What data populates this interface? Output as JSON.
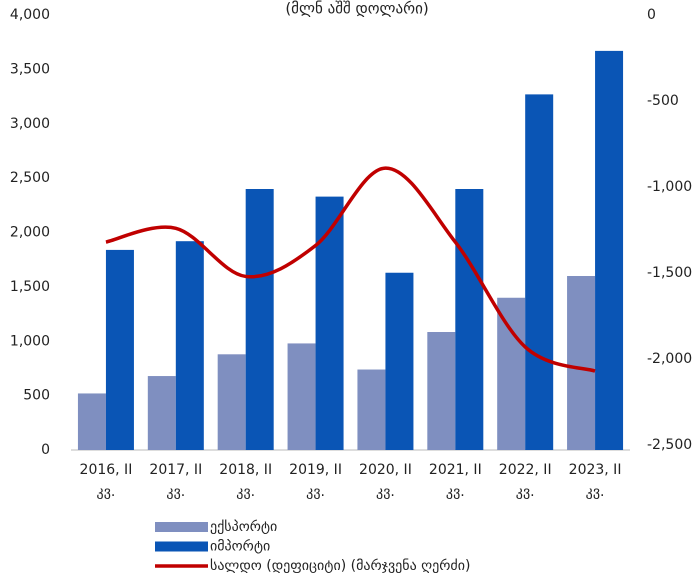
{
  "chart_data": {
    "type": "bar",
    "title": "(მლნ აშშ დოლარი)",
    "categories": [
      [
        "2016, II",
        "კვ."
      ],
      [
        "2017, II",
        "კვ."
      ],
      [
        "2018, II",
        "კვ."
      ],
      [
        "2019, II",
        "კვ."
      ],
      [
        "2020, II",
        "კვ."
      ],
      [
        "2021, II",
        "კვ."
      ],
      [
        "2022, II",
        "კვ."
      ],
      [
        "2023, II",
        "კვ."
      ]
    ],
    "series": [
      {
        "name": "ექსპორტი",
        "type": "bar",
        "color": "#7f8fc0",
        "values": [
          520,
          680,
          880,
          980,
          740,
          1085,
          1400,
          1600
        ]
      },
      {
        "name": "იმპორტი",
        "type": "bar",
        "color": "#0a55b5",
        "values": [
          1840,
          1920,
          2400,
          2330,
          1630,
          2400,
          3270,
          3670
        ]
      },
      {
        "name": "სალდო (დეფიციტი) (მარჯვენა ღერძი)",
        "type": "line",
        "axis": "y2",
        "color": "#c00000",
        "values": [
          -1320,
          -1240,
          -1520,
          -1340,
          -890,
          -1320,
          -1930,
          -2070
        ]
      }
    ],
    "ylim": [
      0,
      4000
    ],
    "yticks": [
      0,
      500,
      {
        "value": 1000,
        "label": "1,000"
      },
      {
        "value": 1500,
        "label": "1,500"
      },
      {
        "value": 2000,
        "label": "2,000"
      },
      {
        "value": 2500,
        "label": "2,500"
      },
      {
        "value": 3000,
        "label": "3,000"
      },
      {
        "value": 3500,
        "label": "3,500"
      },
      {
        "value": 4000,
        "label": "4,000"
      }
    ],
    "y2lim": [
      -2500,
      0
    ],
    "y2ticks": [
      {
        "value": -2500,
        "label": "-2,500"
      },
      {
        "value": -2000,
        "label": "-2,000"
      },
      {
        "value": -1500,
        "label": "-1,500"
      },
      {
        "value": -1000,
        "label": "-1,000"
      },
      -500,
      0
    ]
  }
}
